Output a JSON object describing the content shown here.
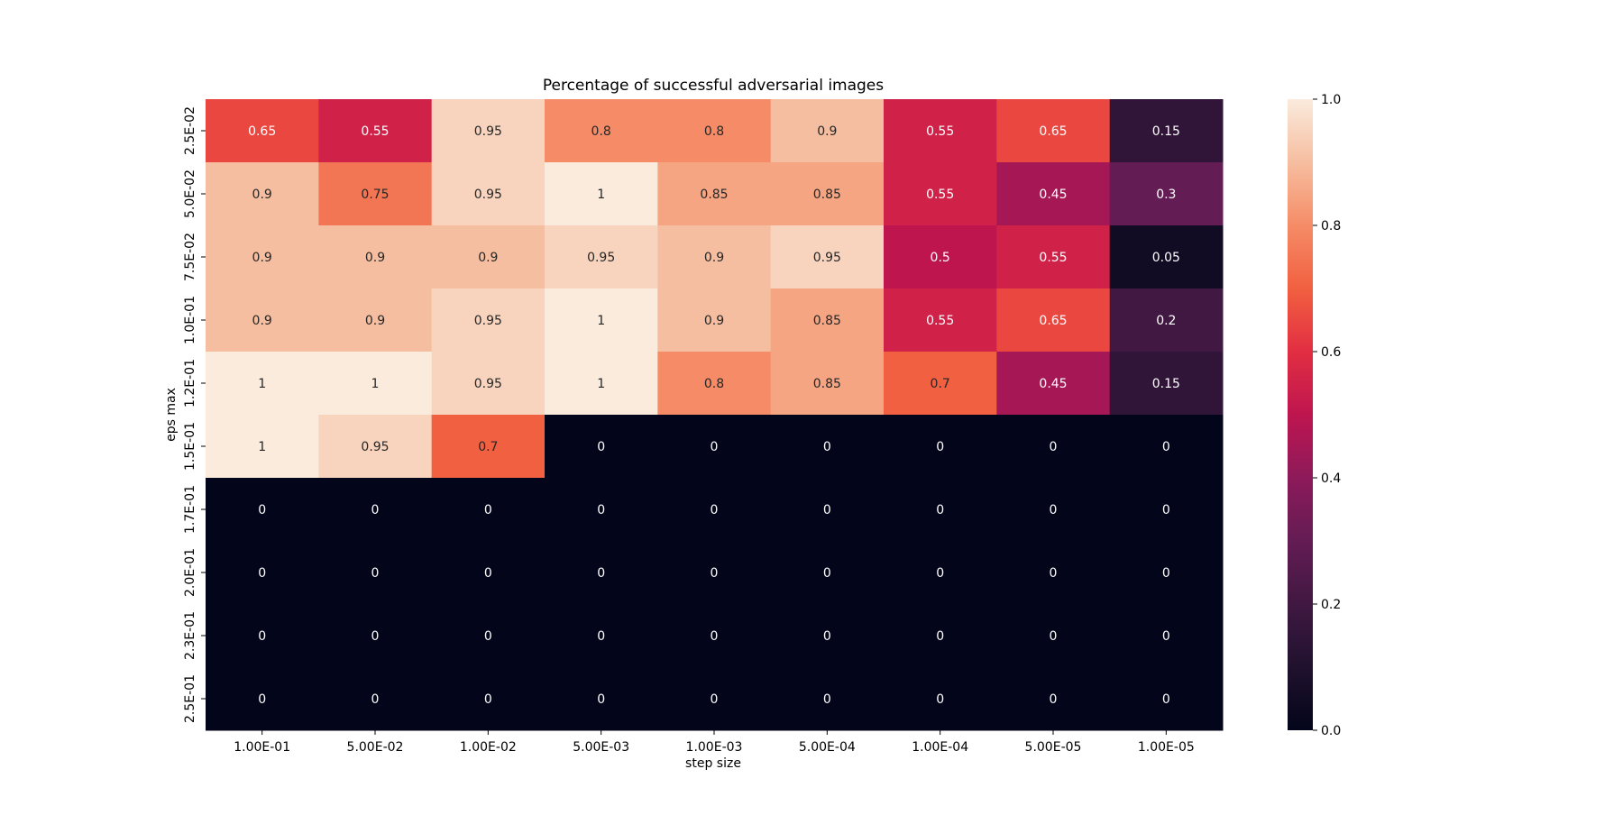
{
  "chart_data": {
    "type": "heatmap",
    "title": "Percentage of successful adversarial images",
    "xlabel": "step size",
    "ylabel": "eps max",
    "x_categories": [
      "1.00E-01",
      "5.00E-02",
      "1.00E-02",
      "5.00E-03",
      "1.00E-03",
      "5.00E-04",
      "1.00E-04",
      "5.00E-05",
      "1.00E-05"
    ],
    "y_categories": [
      "2.5E-02",
      "5.0E-02",
      "7.5E-02",
      "1.0E-01",
      "1.2E-01",
      "1.5E-01",
      "1.7E-01",
      "2.0E-01",
      "2.3E-01",
      "2.5E-01"
    ],
    "values": [
      [
        0.65,
        0.55,
        0.95,
        0.8,
        0.8,
        0.9,
        0.55,
        0.65,
        0.15
      ],
      [
        0.9,
        0.75,
        0.95,
        1,
        0.85,
        0.85,
        0.55,
        0.45,
        0.3
      ],
      [
        0.9,
        0.9,
        0.9,
        0.95,
        0.9,
        0.95,
        0.5,
        0.55,
        0.05
      ],
      [
        0.9,
        0.9,
        0.95,
        1,
        0.9,
        0.85,
        0.55,
        0.65,
        0.2
      ],
      [
        1,
        1,
        0.95,
        1,
        0.8,
        0.85,
        0.7,
        0.45,
        0.15
      ],
      [
        1,
        0.95,
        0.7,
        0,
        0,
        0,
        0,
        0,
        0
      ],
      [
        0,
        0,
        0,
        0,
        0,
        0,
        0,
        0,
        0
      ],
      [
        0,
        0,
        0,
        0,
        0,
        0,
        0,
        0,
        0
      ],
      [
        0,
        0,
        0,
        0,
        0,
        0,
        0,
        0,
        0
      ],
      [
        0,
        0,
        0,
        0,
        0,
        0,
        0,
        0,
        0
      ]
    ],
    "value_range": [
      0,
      1
    ],
    "colormap": "rocket",
    "colorbar": {
      "ticks": [
        0,
        0.2,
        0.4,
        0.6,
        0.8,
        1
      ],
      "tick_labels": [
        "0.0",
        "0.2",
        "0.4",
        "0.6",
        "0.8",
        "1.0"
      ],
      "placement": "right"
    },
    "annotations": true,
    "grid": false
  }
}
